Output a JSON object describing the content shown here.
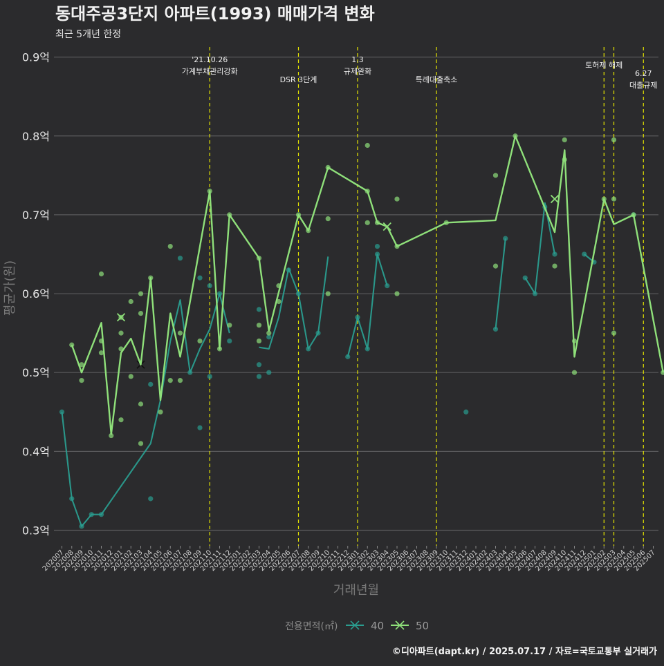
{
  "chart_data": {
    "type": "line",
    "title": "동대주공3단지 아파트(1993) 매매가격 변화",
    "subtitle": "최근 5개년 한정",
    "xlabel": "거래년월",
    "ylabel": "평균가(원)",
    "caption": "©디아파트(dapt.kr) / 2025.07.17 / 자료=국토교통부 실거래가",
    "legend_title": "전용면적(㎡)",
    "legend_position": "bottom",
    "grid": true,
    "ylim": [
      0.28,
      0.915
    ],
    "yticks": [
      {
        "v": 0.3,
        "label": "0.3억"
      },
      {
        "v": 0.4,
        "label": "0.4억"
      },
      {
        "v": 0.5,
        "label": "0.5억"
      },
      {
        "v": 0.6,
        "label": "0.6억"
      },
      {
        "v": 0.7,
        "label": "0.7억"
      },
      {
        "v": 0.8,
        "label": "0.8억"
      },
      {
        "v": 0.9,
        "label": "0.9억"
      }
    ],
    "categories": [
      "202007",
      "202008",
      "202009",
      "202010",
      "202011",
      "202012",
      "202101",
      "202102",
      "202103",
      "202104",
      "202105",
      "202106",
      "202107",
      "202108",
      "202109",
      "202110",
      "202111",
      "202112",
      "202201",
      "202202",
      "202203",
      "202204",
      "202205",
      "202206",
      "202207",
      "202208",
      "202209",
      "202210",
      "202211",
      "202212",
      "202301",
      "202302",
      "202303",
      "202304",
      "202305",
      "202306",
      "202307",
      "202308",
      "202309",
      "202310",
      "202311",
      "202312",
      "202401",
      "202402",
      "202403",
      "202404",
      "202405",
      "202406",
      "202407",
      "202408",
      "202409",
      "202410",
      "202411",
      "202412",
      "202501",
      "202502",
      "202503",
      "202504",
      "202505",
      "202506",
      "202507"
    ],
    "events": [
      {
        "x": "202110",
        "lines": [
          "'21.10.26",
          "가계부채관리강화"
        ]
      },
      {
        "x": "202207",
        "lines": [
          "DSR 3단계"
        ]
      },
      {
        "x": "202301",
        "lines": [
          "1.3",
          "규제완화"
        ]
      },
      {
        "x": "202309",
        "lines": [
          "특례대출축소"
        ]
      },
      {
        "x": "202502",
        "lines": [
          "토허제 해제"
        ]
      },
      {
        "x": "202503",
        "lines": []
      },
      {
        "x": "202506",
        "lines": [
          "6.27",
          "대출규제"
        ]
      }
    ],
    "series": [
      {
        "name": "40",
        "color": "#2a9d8f",
        "lines": [
          [
            [
              "202007",
              0.45
            ],
            [
              "202008",
              0.34
            ],
            [
              "202009",
              0.305
            ],
            [
              "202010",
              0.32
            ],
            [
              "202011",
              0.32
            ],
            [
              "202104",
              0.41
            ],
            [
              "202105",
              0.465
            ],
            [
              "202106",
              0.54
            ],
            [
              "202107",
              0.592
            ],
            [
              "202108",
              0.5
            ],
            [
              "202109",
              0.53
            ],
            [
              "202110",
              0.555
            ],
            [
              "202111",
              0.6
            ],
            [
              "202112",
              0.55
            ]
          ],
          [
            [
              "202203",
              0.532
            ],
            [
              "202204",
              0.53
            ],
            [
              "202205",
              0.57
            ],
            [
              "202206",
              0.632
            ],
            [
              "202207",
              0.6
            ],
            [
              "202208",
              0.53
            ],
            [
              "202209",
              0.55
            ],
            [
              "202210",
              0.647
            ]
          ],
          [
            [
              "202212",
              0.52
            ],
            [
              "202301",
              0.57
            ],
            [
              "202302",
              0.53
            ],
            [
              "202303",
              0.65
            ],
            [
              "202304",
              0.61
            ]
          ],
          [
            [
              "202403",
              0.555
            ],
            [
              "202404",
              0.67
            ]
          ],
          [
            [
              "202406",
              0.62
            ],
            [
              "202407",
              0.6
            ],
            [
              "202408",
              0.715
            ],
            [
              "202409",
              0.65
            ]
          ],
          [
            [
              "202412",
              0.65
            ],
            [
              "202501",
              0.64
            ]
          ]
        ],
        "points": [
          [
            "202007",
            0.45
          ],
          [
            "202008",
            0.34
          ],
          [
            "202009",
            0.305
          ],
          [
            "202010",
            0.32
          ],
          [
            "202011",
            0.32
          ],
          [
            "202104",
            0.34
          ],
          [
            "202104",
            0.485
          ],
          [
            "202107",
            0.645
          ],
          [
            "202108",
            0.5
          ],
          [
            "202109",
            0.62
          ],
          [
            "202109",
            0.43
          ],
          [
            "202110",
            0.61
          ],
          [
            "202110",
            0.495
          ],
          [
            "202111",
            0.6
          ],
          [
            "202112",
            0.54
          ],
          [
            "202203",
            0.58
          ],
          [
            "202203",
            0.51
          ],
          [
            "202203",
            0.495
          ],
          [
            "202204",
            0.545
          ],
          [
            "202204",
            0.5
          ],
          [
            "202206",
            0.63
          ],
          [
            "202207",
            0.6
          ],
          [
            "202208",
            0.53
          ],
          [
            "202209",
            0.55
          ],
          [
            "202212",
            0.52
          ],
          [
            "202301",
            0.57
          ],
          [
            "202302",
            0.53
          ],
          [
            "202303",
            0.66
          ],
          [
            "202303",
            0.65
          ],
          [
            "202304",
            0.61
          ],
          [
            "202312",
            0.45
          ],
          [
            "202403",
            0.555
          ],
          [
            "202404",
            0.67
          ],
          [
            "202406",
            0.62
          ],
          [
            "202407",
            0.6
          ],
          [
            "202408",
            0.71
          ],
          [
            "202409",
            0.65
          ],
          [
            "202412",
            0.65
          ],
          [
            "202501",
            0.64
          ],
          [
            "202505",
            0.7
          ]
        ],
        "crosses": [
          [
            "202103",
            0.51
          ]
        ]
      },
      {
        "name": "50",
        "color": "#8fe07a",
        "lines": [
          [
            [
              "202008",
              0.535
            ],
            [
              "202009",
              0.5
            ],
            [
              "202011",
              0.563
            ],
            [
              "202012",
              0.422
            ],
            [
              "202101",
              0.525
            ],
            [
              "202102",
              0.543
            ],
            [
              "202103",
              0.51
            ],
            [
              "202104",
              0.62
            ],
            [
              "202105",
              0.465
            ],
            [
              "202106",
              0.575
            ],
            [
              "202107",
              0.52
            ],
            [
              "202110",
              0.73
            ],
            [
              "202111",
              0.53
            ],
            [
              "202112",
              0.7
            ],
            [
              "202203",
              0.645
            ],
            [
              "202204",
              0.553
            ],
            [
              "202207",
              0.7
            ],
            [
              "202208",
              0.68
            ],
            [
              "202210",
              0.76
            ],
            [
              "202302",
              0.73
            ],
            [
              "202303",
              0.69
            ],
            [
              "202304",
              0.685
            ],
            [
              "202305",
              0.66
            ],
            [
              "202310",
              0.69
            ],
            [
              "202403",
              0.693
            ],
            [
              "202405",
              0.8
            ],
            [
              "202409",
              0.678
            ],
            [
              "202410",
              0.782
            ],
            [
              "202411",
              0.52
            ],
            [
              "202502",
              0.72
            ],
            [
              "202503",
              0.688
            ],
            [
              "202505",
              0.7
            ],
            [
              "202508",
              0.5
            ]
          ]
        ],
        "points": [
          [
            "202008",
            0.535
          ],
          [
            "202009",
            0.51
          ],
          [
            "202009",
            0.49
          ],
          [
            "202011",
            0.625
          ],
          [
            "202011",
            0.54
          ],
          [
            "202011",
            0.525
          ],
          [
            "202012",
            0.42
          ],
          [
            "202101",
            0.57
          ],
          [
            "202101",
            0.55
          ],
          [
            "202101",
            0.53
          ],
          [
            "202101",
            0.44
          ],
          [
            "202102",
            0.59
          ],
          [
            "202102",
            0.495
          ],
          [
            "202103",
            0.6
          ],
          [
            "202103",
            0.575
          ],
          [
            "202103",
            0.46
          ],
          [
            "202103",
            0.41
          ],
          [
            "202104",
            0.62
          ],
          [
            "202105",
            0.45
          ],
          [
            "202106",
            0.66
          ],
          [
            "202106",
            0.49
          ],
          [
            "202107",
            0.55
          ],
          [
            "202107",
            0.49
          ],
          [
            "202109",
            0.54
          ],
          [
            "202110",
            0.73
          ],
          [
            "202111",
            0.53
          ],
          [
            "202112",
            0.7
          ],
          [
            "202112",
            0.56
          ],
          [
            "202203",
            0.645
          ],
          [
            "202203",
            0.56
          ],
          [
            "202203",
            0.54
          ],
          [
            "202204",
            0.55
          ],
          [
            "202205",
            0.61
          ],
          [
            "202205",
            0.59
          ],
          [
            "202207",
            0.7
          ],
          [
            "202208",
            0.68
          ],
          [
            "202210",
            0.76
          ],
          [
            "202210",
            0.695
          ],
          [
            "202210",
            0.6
          ],
          [
            "202302",
            0.73
          ],
          [
            "202302",
            0.788
          ],
          [
            "202302",
            0.69
          ],
          [
            "202303",
            0.69
          ],
          [
            "202305",
            0.72
          ],
          [
            "202305",
            0.66
          ],
          [
            "202305",
            0.6
          ],
          [
            "202310",
            0.69
          ],
          [
            "202403",
            0.75
          ],
          [
            "202403",
            0.635
          ],
          [
            "202405",
            0.8
          ],
          [
            "202409",
            0.635
          ],
          [
            "202410",
            0.795
          ],
          [
            "202410",
            0.77
          ],
          [
            "202411",
            0.54
          ],
          [
            "202411",
            0.5
          ],
          [
            "202502",
            0.72
          ],
          [
            "202503",
            0.795
          ],
          [
            "202503",
            0.72
          ],
          [
            "202503",
            0.55
          ],
          [
            "202505",
            0.7
          ],
          [
            "202508",
            0.5
          ]
        ],
        "crosses": [
          [
            "202101",
            0.57
          ],
          [
            "202304",
            0.685
          ],
          [
            "202409",
            0.72
          ]
        ]
      }
    ]
  }
}
